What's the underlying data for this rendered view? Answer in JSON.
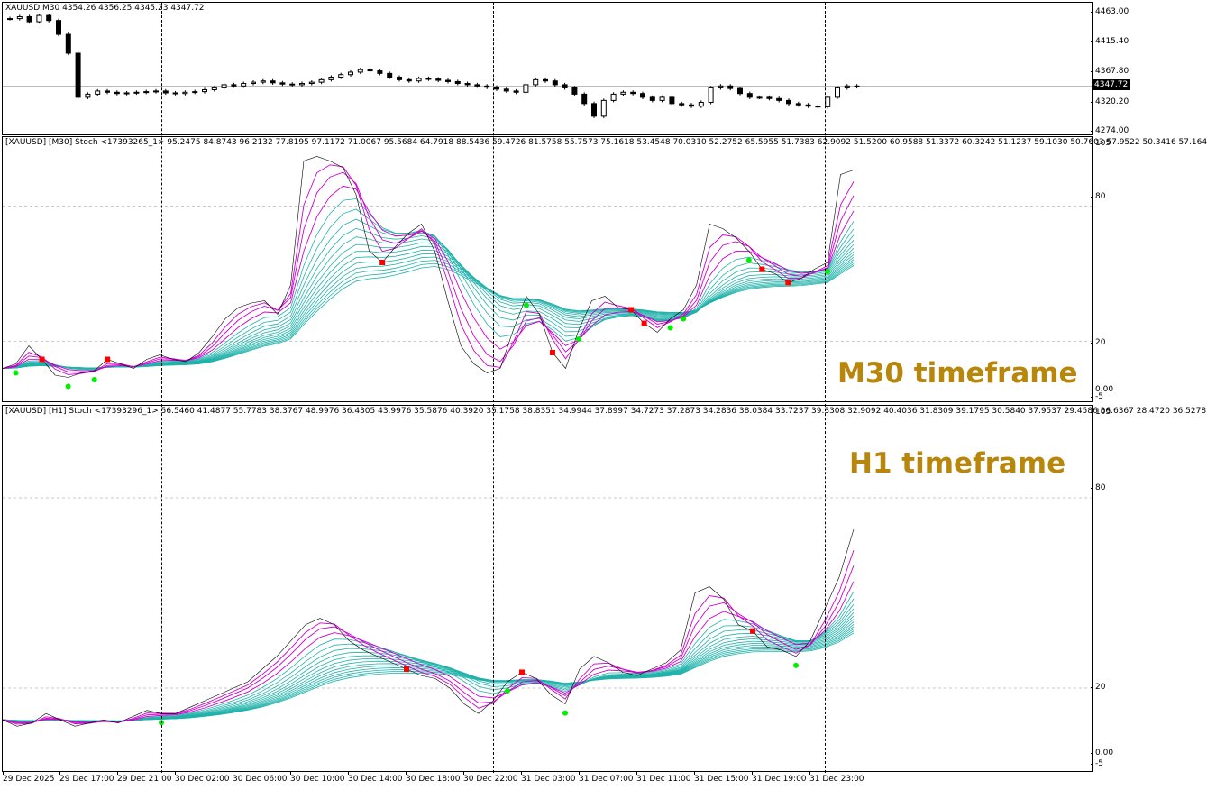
{
  "price_pane": {
    "header": "XAUUSD,M30  4354.26 4356.25 4345.23 4347.72",
    "axis_ticks": [
      "4463.00",
      "4415.40",
      "4367.80",
      "4320.20",
      "4274.00"
    ],
    "current_price": "4347.72"
  },
  "m30_pane": {
    "header": "[XAUUSD] [M30] Stoch <17393265_1> 95.2475 84.8743 96.2132 77.8195 97.1172 71.0067 95.5684 64.7918 88.5436 59.4726 81.5758 55.7573 75.1618 53.4548 70.0310 52.2752 65.5955 51.7383 62.9092 51.5200 60.9588 51.3372 60.3242 51.1237 59.1030 50.7603 57.9522 50.3416 57.164",
    "axis_ticks": [
      "105",
      "80",
      "20",
      "0.00",
      "-5"
    ],
    "label": "M30 timeframe"
  },
  "h1_pane": {
    "header": "[XAUUSD] [H1] Stoch <17393296_1> 56.5460 41.4877 55.7783 38.3767 48.9976 36.4305 43.9976 35.5876 40.3920 35.1758 38.8351 34.9944 37.8997 34.7273 37.2873 34.2836 38.0384 33.7237 39.3308 32.9092 40.4036 31.8309 39.1795 30.5840 37.9537 29.4586 36.6367 28.4720 36.5278",
    "axis_ticks": [
      "105",
      "80",
      "20",
      "0.00",
      "-5"
    ],
    "label": "H1 timeframe"
  },
  "time_axis": [
    "29 Dec 2025",
    "29 Dec 17:00",
    "29 Dec 21:00",
    "30 Dec 02:00",
    "30 Dec 06:00",
    "30 Dec 10:00",
    "30 Dec 14:00",
    "30 Dec 18:00",
    "30 Dec 22:00",
    "31 Dec 03:00",
    "31 Dec 07:00",
    "31 Dec 11:00",
    "31 Dec 15:00",
    "31 Dec 19:00",
    "31 Dec 23:00"
  ],
  "colors": {
    "fast_lines": "#cc00cc",
    "slow_lines": "#20b2aa",
    "main_line": "#000000",
    "sell_marker": "#ff0000",
    "buy_marker": "#00ee00",
    "label": "#b8860b"
  },
  "chart_data": [
    {
      "type": "candlestick",
      "series": [
        {
          "values": [
            4455,
            4458,
            4450,
            4460,
            4452,
            4430,
            4400,
            4330,
            4335,
            4340,
            4338,
            4336,
            4337,
            4338,
            4339,
            4340,
            4337,
            4336,
            4338,
            4339,
            4342,
            4345,
            4350,
            4348,
            4352,
            4354,
            4356,
            4353,
            4351,
            4350,
            4352,
            4354,
            4358,
            4362,
            4366,
            4370,
            4374,
            4372,
            4368,
            4362,
            4358,
            4356,
            4360,
            4359,
            4357,
            4355,
            4352,
            4350,
            4348,
            4346,
            4343,
            4340,
            4338,
            4350,
            4358,
            4356,
            4350,
            4345,
            4335,
            4320,
            4300,
            4325,
            4335,
            4338,
            4336,
            4330,
            4325,
            4330,
            4320,
            4318,
            4316,
            4322,
            4345,
            4348,
            4344,
            4336,
            4330,
            4330,
            4328,
            4325,
            4320,
            4318,
            4316,
            4315,
            4330,
            4345,
            4348,
            4347
          ]
        }
      ],
      "ylim": [
        4274,
        4463
      ]
    },
    {
      "type": "line",
      "series": [
        {
          "values": [
            8,
            10,
            18,
            12,
            5,
            4,
            6,
            7,
            12,
            10,
            8,
            12,
            14,
            12,
            11,
            15,
            22,
            30,
            35,
            37,
            38,
            32,
            45,
            100,
            102,
            100,
            97,
            85,
            60,
            55,
            62,
            68,
            72,
            60,
            38,
            18,
            10,
            6,
            8,
            25,
            40,
            32,
            15,
            8,
            25,
            38,
            40,
            35,
            34,
            28,
            24,
            30,
            34,
            45,
            72,
            70,
            66,
            60,
            52,
            50,
            46,
            48,
            52,
            55,
            94,
            96
          ]
        }
      ],
      "ylim": [
        -5,
        105
      ]
    },
    {
      "type": "line",
      "series": [
        {
          "values": [
            10,
            8,
            9,
            12,
            10,
            8,
            9,
            10,
            9,
            11,
            13,
            12,
            12,
            14,
            16,
            18,
            20,
            22,
            26,
            30,
            35,
            40,
            42,
            40,
            35,
            32,
            30,
            28,
            26,
            24,
            23,
            20,
            15,
            12,
            16,
            22,
            25,
            23,
            18,
            15,
            26,
            30,
            28,
            25,
            24,
            26,
            28,
            32,
            50,
            52,
            48,
            40,
            38,
            33,
            32,
            30,
            35,
            45,
            55,
            70
          ]
        }
      ],
      "ylim": [
        -5,
        105
      ]
    }
  ]
}
